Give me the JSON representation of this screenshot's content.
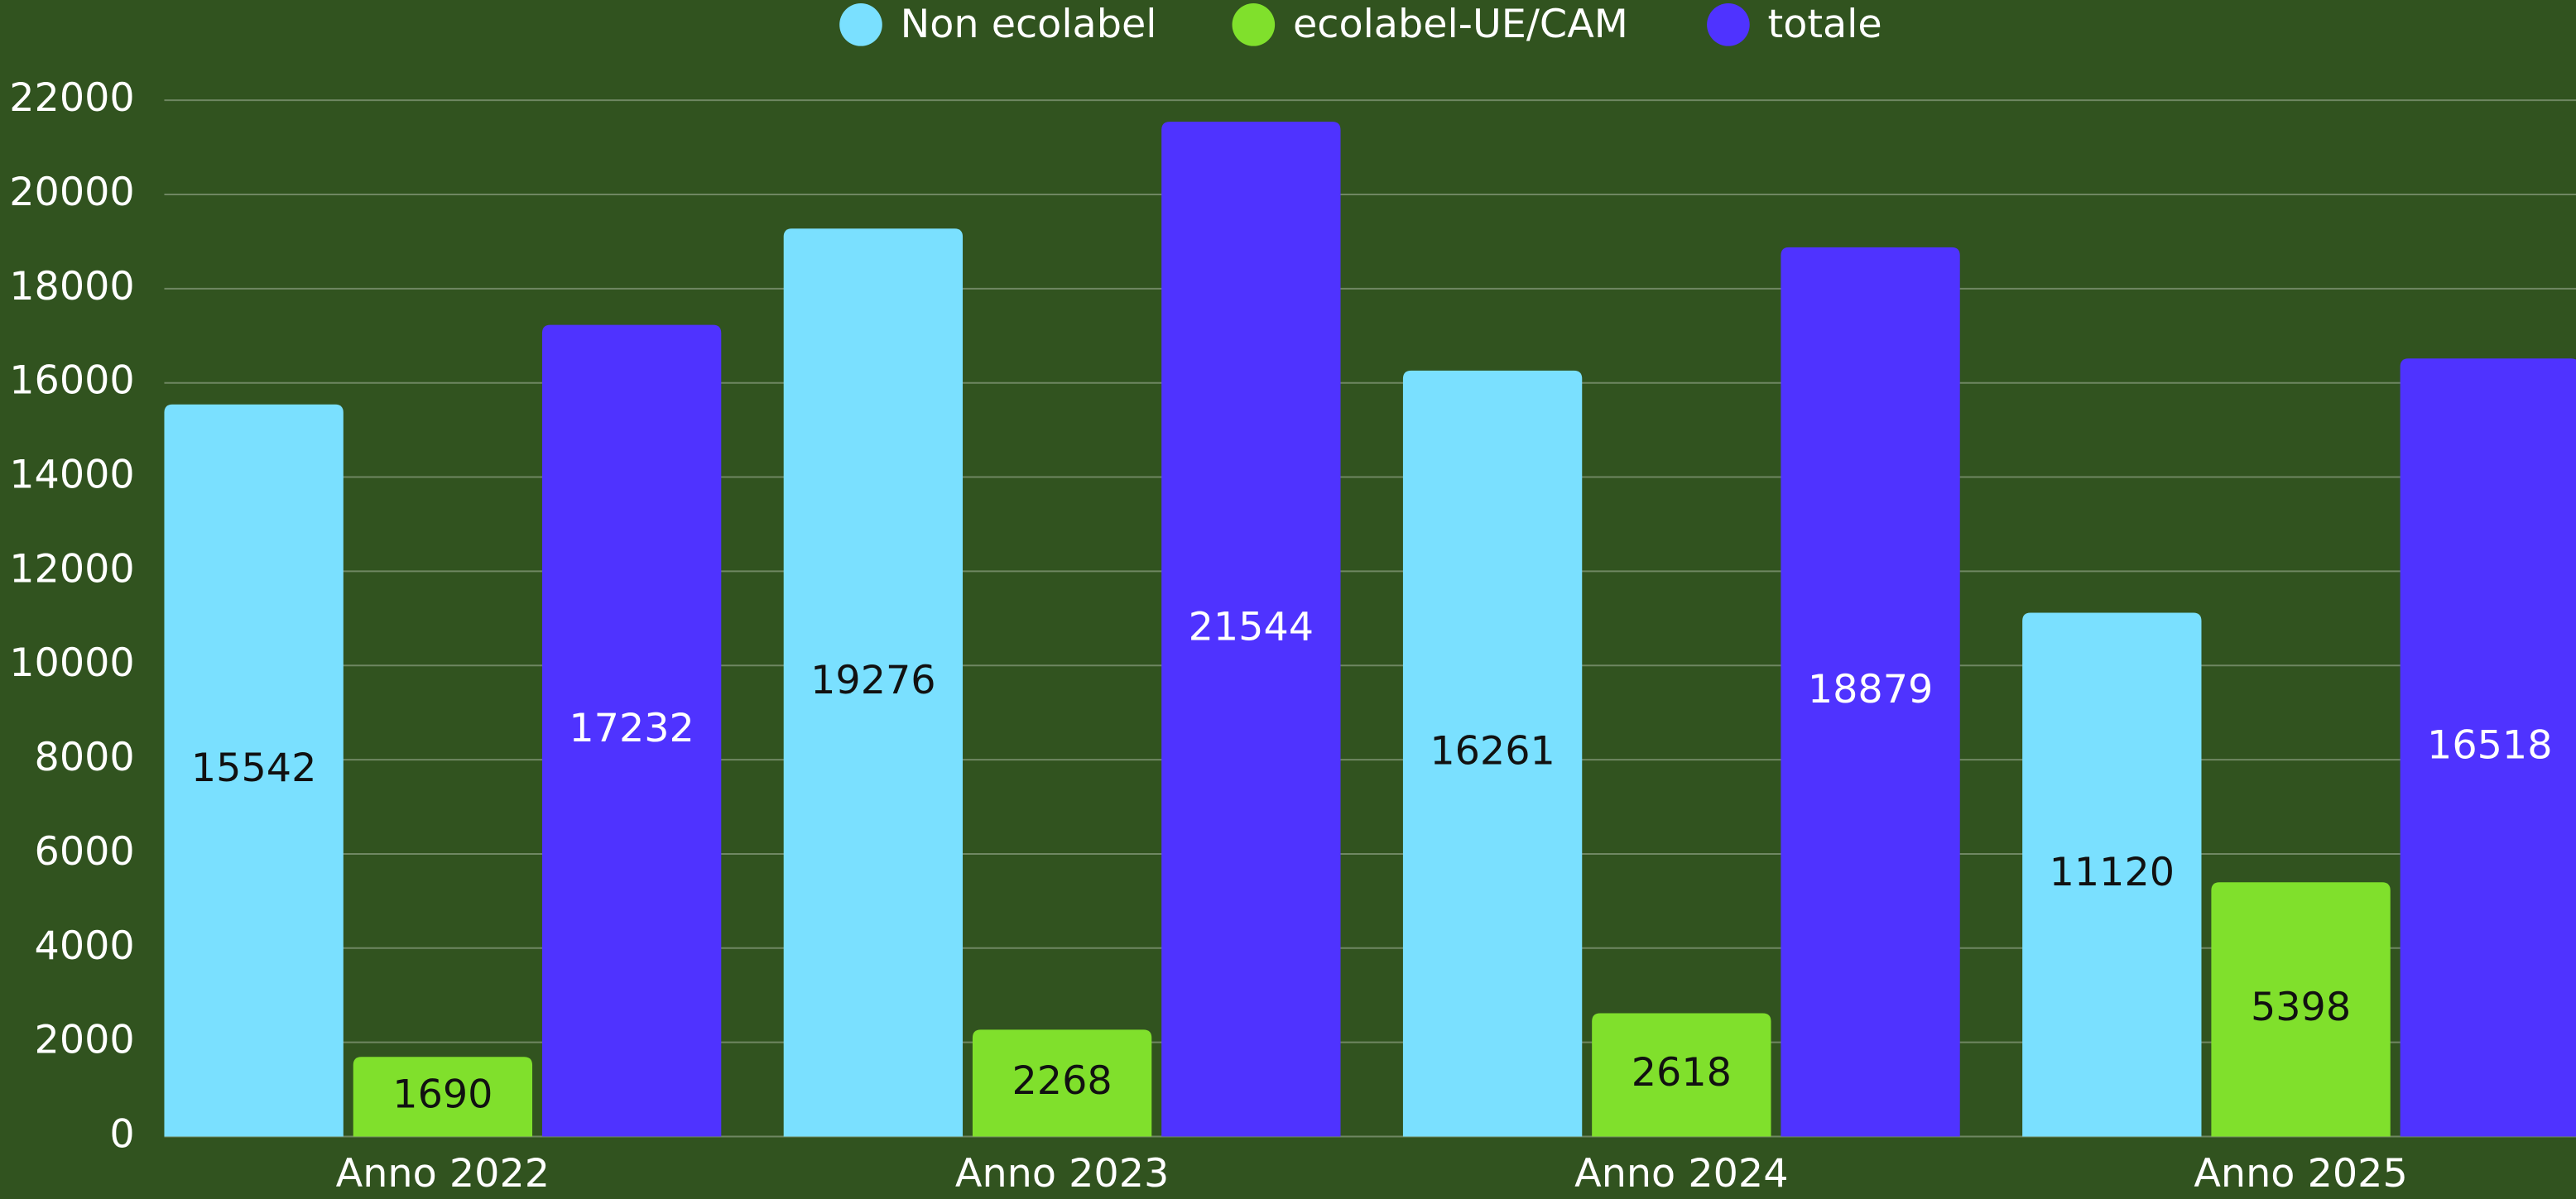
{
  "chart_data": {
    "type": "bar",
    "categories": [
      "Anno 2022",
      "Anno 2023",
      "Anno 2024",
      "Anno 2025"
    ],
    "series": [
      {
        "name": "Non ecolabel",
        "color": "#7ae0ff",
        "values": [
          15542,
          19276,
          16261,
          11120
        ]
      },
      {
        "name": "ecolabel-UE/CAM",
        "color": "#80e02c",
        "values": [
          1690,
          2268,
          2618,
          5398
        ]
      },
      {
        "name": "totale",
        "color": "#4f33ff",
        "values": [
          17232,
          21544,
          18879,
          16518
        ]
      }
    ],
    "ylim": [
      0,
      22000
    ],
    "yticks": [
      0,
      2000,
      4000,
      6000,
      8000,
      10000,
      12000,
      14000,
      16000,
      18000,
      20000,
      22000
    ],
    "grid": true,
    "legend": "top"
  }
}
